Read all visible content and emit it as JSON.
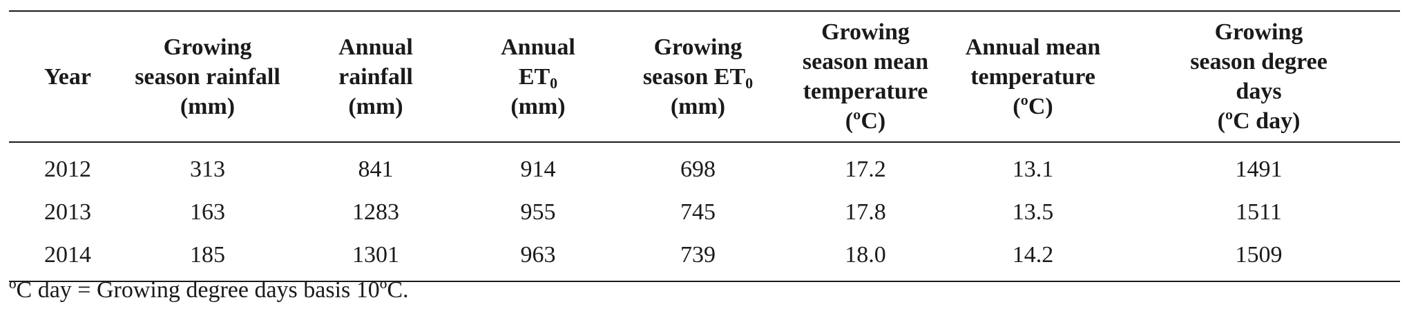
{
  "table": {
    "headers": [
      {
        "lines": [
          "Year"
        ]
      },
      {
        "lines": [
          "Growing",
          "season rainfall",
          "(mm)"
        ]
      },
      {
        "lines": [
          "Annual",
          "rainfall",
          "(mm)"
        ]
      },
      {
        "lines": [
          "Annual",
          "ET",
          "(mm)"
        ],
        "subscript_line": 1,
        "subscript": "0"
      },
      {
        "lines": [
          "Growing",
          "season ET",
          "(mm)"
        ],
        "subscript_line": 1,
        "subscript": "0"
      },
      {
        "lines": [
          "Growing",
          "season mean",
          "temperature",
          "(ºC)"
        ]
      },
      {
        "lines": [
          "Annual mean",
          "temperature",
          "(ºC)"
        ]
      },
      {
        "lines": [
          "Growing",
          "season degree",
          "days",
          "(ºC day)"
        ]
      }
    ],
    "rows": [
      [
        "2012",
        "313",
        "841",
        "914",
        "698",
        "17.2",
        "13.1",
        "1491"
      ],
      [
        "2013",
        "163",
        "1283",
        "955",
        "745",
        "17.8",
        "13.5",
        "1511"
      ],
      [
        "2014",
        "185",
        "1301",
        "963",
        "739",
        "18.0",
        "14.2",
        "1509"
      ]
    ]
  },
  "footnote": "ºC day = Growing degree days basis 10ºC."
}
